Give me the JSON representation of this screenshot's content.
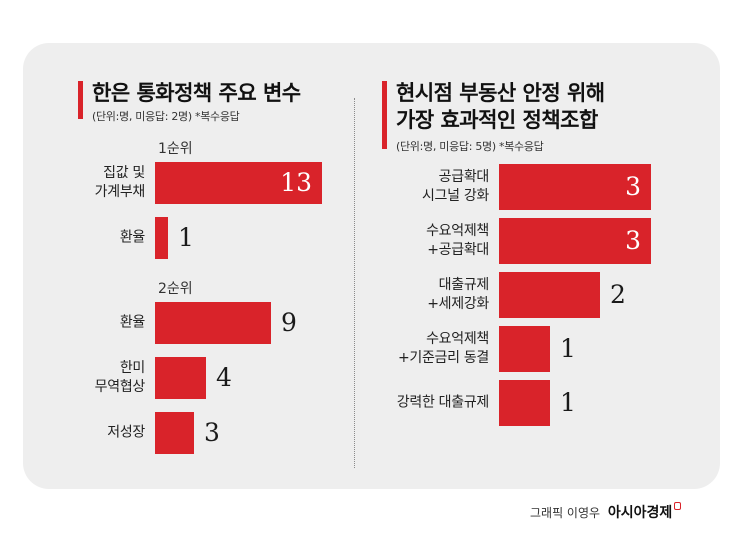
{
  "credit": {
    "text": "그래픽 이영우",
    "brand": "아시아경제",
    "accent": "#d9232a"
  },
  "chart_data": [
    {
      "type": "bar",
      "orientation": "horizontal",
      "title": "한은 통화정책 주요 변수",
      "subtitle": "(단위:명, 미응답: 2명) *복수응답",
      "groups": [
        {
          "label": "1순위",
          "categories": [
            "집값 및\n가계부채",
            "환율"
          ],
          "values": [
            13,
            1
          ]
        },
        {
          "label": "2순위",
          "categories": [
            "환율",
            "한미\n무역협상",
            "저성장"
          ],
          "values": [
            9,
            4,
            3
          ]
        }
      ],
      "xlim": [
        0,
        13
      ],
      "bar_color": "#d9232a"
    },
    {
      "type": "bar",
      "orientation": "horizontal",
      "title": "현시점 부동산 안정 위해\n가장 효과적인 정책조합",
      "subtitle": "(단위:명, 미응답: 5명) *복수응답",
      "categories": [
        "공급확대\n시그널 강화",
        "수요억제책\n+공급확대",
        "대출규제\n+세제강화",
        "수요억제책\n+기준금리 동결",
        "강력한 대출규제"
      ],
      "values": [
        3,
        3,
        2,
        1,
        1
      ],
      "xlim": [
        0,
        3
      ],
      "bar_color": "#d9232a"
    }
  ]
}
